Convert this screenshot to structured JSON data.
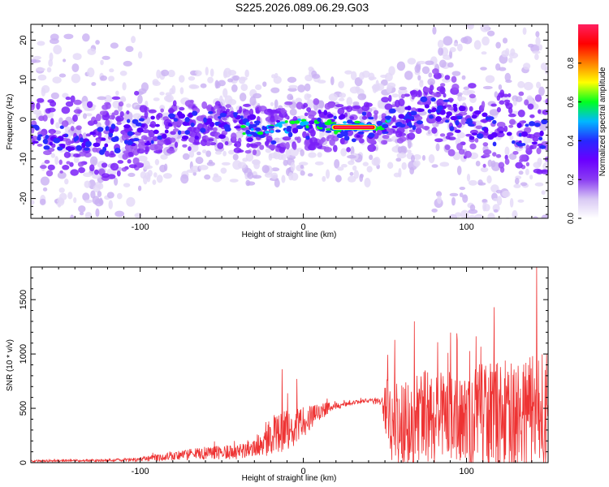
{
  "title": "S225.2026.089.06.29.G03",
  "chart_data": [
    {
      "type": "heatmap",
      "xlabel": "Height of straight line (km)",
      "ylabel": "Frequency (Hz)",
      "xlim": [
        -167,
        150
      ],
      "ylim": [
        -25,
        24
      ],
      "xticks": [
        "-100",
        "0",
        "100"
      ],
      "xtick_values": [
        -100,
        0,
        100
      ],
      "yticks": [
        "-20",
        "-10",
        "0",
        "10",
        "20"
      ],
      "ytick_values": [
        -20,
        -10,
        0,
        10,
        20
      ],
      "ridge_center_x": [
        -167,
        -140,
        -120,
        -100,
        -80,
        -60,
        -40,
        -20,
        0,
        20,
        40,
        60,
        80,
        100,
        120,
        150
      ],
      "ridge_center_y": [
        -4,
        -4.5,
        -5,
        -3,
        -2,
        -1,
        -2,
        -3,
        -1,
        -2,
        -2,
        0,
        3,
        -1,
        -3,
        -4
      ],
      "peak_segment": {
        "x_range": [
          20,
          42
        ],
        "frequency": -2,
        "amplitude": 1.0
      },
      "colorbar": {
        "label": "Normalized spectral amplitude",
        "range": [
          0,
          1
        ],
        "ticks": [
          "0.0",
          "0.2",
          "0.4",
          "0.6",
          "0.8"
        ],
        "tick_values": [
          0.0,
          0.2,
          0.4,
          0.6,
          0.8
        ],
        "colors": [
          "#ffffff",
          "#d8c8f4",
          "#8a3cf2",
          "#6a00ff",
          "#2828ff",
          "#00b8ff",
          "#00ff20",
          "#ffff00",
          "#ff8000",
          "#ff0000",
          "#ff2060"
        ]
      }
    },
    {
      "type": "line",
      "xlabel": "Height of straight line (km)",
      "ylabel": "SNR (10 * v/v)",
      "xlim": [
        -167,
        150
      ],
      "ylim": [
        0,
        1800
      ],
      "xticks": [
        "-100",
        "0",
        "100"
      ],
      "xtick_values": [
        -100,
        0,
        100
      ],
      "yticks": [
        "0",
        "500",
        "1000",
        "1500"
      ],
      "ytick_values": [
        0,
        500,
        1000,
        1500
      ],
      "color": "#ee3333",
      "envelope": {
        "x": [
          -167,
          -120,
          -100,
          -80,
          -60,
          -40,
          -30,
          -20,
          -10,
          0,
          10,
          20,
          30,
          40,
          48,
          52,
          60,
          80,
          100,
          120,
          140,
          150
        ],
        "base": [
          15,
          20,
          30,
          60,
          90,
          100,
          140,
          230,
          300,
          360,
          470,
          520,
          550,
          570,
          560,
          400,
          400,
          420,
          420,
          430,
          450,
          450
        ],
        "noise": [
          10,
          12,
          20,
          40,
          60,
          70,
          100,
          180,
          200,
          150,
          80,
          30,
          20,
          20,
          30,
          400,
          420,
          450,
          480,
          500,
          550,
          560
        ]
      },
      "peaks": [
        {
          "x": -13,
          "y": 860
        },
        {
          "x": -4,
          "y": 770
        },
        {
          "x": 56,
          "y": 1130
        },
        {
          "x": 68,
          "y": 1300
        },
        {
          "x": 94,
          "y": 1190
        },
        {
          "x": 117,
          "y": 1430
        },
        {
          "x": 143,
          "y": 1800
        }
      ]
    }
  ]
}
